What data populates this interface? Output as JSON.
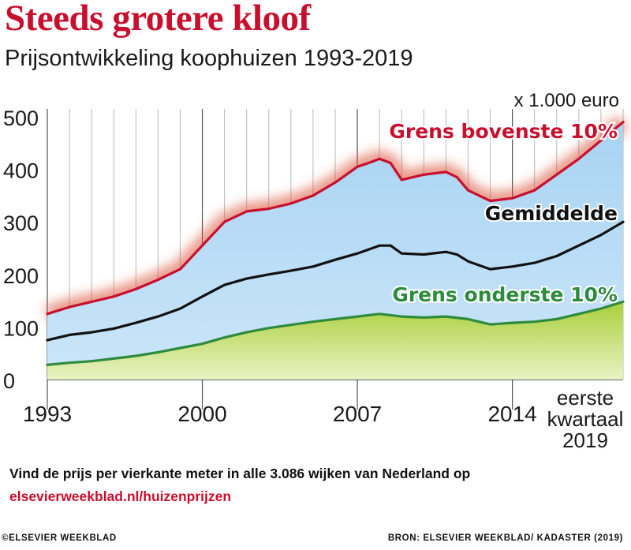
{
  "header": {
    "title": "Steeds grotere kloof",
    "subtitle": "Prijsontwikkeling koophuizen 1993-2019"
  },
  "colors": {
    "upper": "#c8102e",
    "average": "#111111",
    "lower": "#2e8b3d",
    "band_fill": "#bfe0f7",
    "lower_fill": "#c8df7a"
  },
  "chart_data": {
    "type": "line",
    "x_start": 1993,
    "x_end": 2019,
    "x_ticks": [
      1993,
      2000,
      2007,
      2014
    ],
    "x_tick_labels": [
      "1993",
      "2000",
      "2007",
      "2014"
    ],
    "end_label_lines": [
      "eerste",
      "kwartaal",
      "2019"
    ],
    "ylim": [
      0,
      500
    ],
    "y_ticks": [
      0,
      100,
      200,
      300,
      400,
      500
    ],
    "y_tick_labels": [
      "0",
      "100",
      "200",
      "300",
      "400",
      "500"
    ],
    "unit_label": "x 1.000 euro",
    "grid": "vertical",
    "series": [
      {
        "name": "Grens bovenste 10%",
        "key": "upper",
        "points": [
          [
            1993,
            125
          ],
          [
            1994,
            138
          ],
          [
            1995,
            148
          ],
          [
            1996,
            158
          ],
          [
            1997,
            172
          ],
          [
            1998,
            190
          ],
          [
            1999,
            210
          ],
          [
            2000,
            255
          ],
          [
            2001,
            300
          ],
          [
            2002,
            320
          ],
          [
            2003,
            325
          ],
          [
            2004,
            335
          ],
          [
            2005,
            350
          ],
          [
            2006,
            375
          ],
          [
            2007,
            405
          ],
          [
            2007.5,
            412
          ],
          [
            2008,
            420
          ],
          [
            2008.5,
            412
          ],
          [
            2009,
            380
          ],
          [
            2010,
            390
          ],
          [
            2011,
            395
          ],
          [
            2011.5,
            385
          ],
          [
            2012,
            360
          ],
          [
            2013,
            340
          ],
          [
            2014,
            345
          ],
          [
            2015,
            360
          ],
          [
            2016,
            390
          ],
          [
            2017,
            420
          ],
          [
            2018,
            455
          ],
          [
            2019,
            490
          ]
        ]
      },
      {
        "name": "Gemiddelde",
        "key": "average",
        "points": [
          [
            1993,
            75
          ],
          [
            1994,
            85
          ],
          [
            1995,
            90
          ],
          [
            1996,
            97
          ],
          [
            1997,
            108
          ],
          [
            1998,
            120
          ],
          [
            1999,
            135
          ],
          [
            2000,
            158
          ],
          [
            2001,
            180
          ],
          [
            2002,
            192
          ],
          [
            2003,
            200
          ],
          [
            2004,
            207
          ],
          [
            2005,
            215
          ],
          [
            2006,
            228
          ],
          [
            2007,
            240
          ],
          [
            2008,
            255
          ],
          [
            2008.5,
            255
          ],
          [
            2009,
            240
          ],
          [
            2010,
            238
          ],
          [
            2011,
            243
          ],
          [
            2011.5,
            238
          ],
          [
            2012,
            225
          ],
          [
            2013,
            210
          ],
          [
            2014,
            215
          ],
          [
            2015,
            222
          ],
          [
            2016,
            235
          ],
          [
            2017,
            255
          ],
          [
            2018,
            275
          ],
          [
            2019,
            300
          ]
        ]
      },
      {
        "name": "Grens onderste 10%",
        "key": "lower",
        "points": [
          [
            1993,
            28
          ],
          [
            1994,
            32
          ],
          [
            1995,
            35
          ],
          [
            1996,
            40
          ],
          [
            1997,
            45
          ],
          [
            1998,
            52
          ],
          [
            1999,
            60
          ],
          [
            2000,
            68
          ],
          [
            2001,
            80
          ],
          [
            2002,
            90
          ],
          [
            2003,
            98
          ],
          [
            2004,
            104
          ],
          [
            2005,
            110
          ],
          [
            2006,
            115
          ],
          [
            2007,
            120
          ],
          [
            2008,
            125
          ],
          [
            2009,
            120
          ],
          [
            2010,
            118
          ],
          [
            2011,
            120
          ],
          [
            2012,
            115
          ],
          [
            2013,
            105
          ],
          [
            2014,
            108
          ],
          [
            2015,
            110
          ],
          [
            2016,
            115
          ],
          [
            2017,
            125
          ],
          [
            2018,
            135
          ],
          [
            2019,
            148
          ]
        ]
      }
    ]
  },
  "note": {
    "text": "Vind de prijs per vierkante meter in alle 3.086 wijken van Nederland op ",
    "link": "elsevierweekblad.nl/huizenprijzen"
  },
  "footer": {
    "left": "©ELSEVIER WEEKBLAD",
    "right": "BRON: ELSEVIER WEEKBLAD/ KADASTER (2019)"
  }
}
